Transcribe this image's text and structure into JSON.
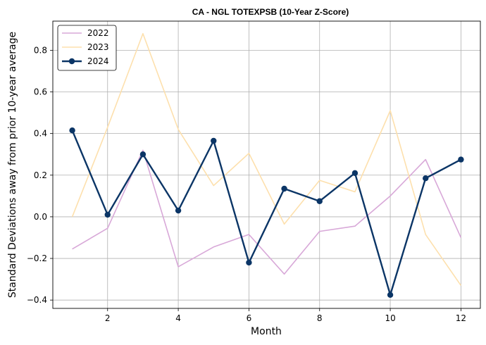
{
  "chart_data": {
    "type": "line",
    "title": "CA - NGL TOTEXPSB (10-Year Z-Score)",
    "xlabel": "Month",
    "ylabel": "Standard Deviations away from prior 10-year average",
    "x": [
      1,
      2,
      3,
      4,
      5,
      6,
      7,
      8,
      9,
      10,
      11,
      12
    ],
    "xlim": [
      0.45,
      12.55
    ],
    "ylim": [
      -0.44,
      0.94
    ],
    "xticks": [
      2,
      4,
      6,
      8,
      10,
      12
    ],
    "yticks": [
      -0.4,
      -0.2,
      0.0,
      0.2,
      0.4,
      0.6,
      0.8
    ],
    "ytick_labels": [
      "−0.4",
      "−0.2",
      "0.0",
      "0.2",
      "0.4",
      "0.6",
      "0.8"
    ],
    "grid": true,
    "legend_position": "top-left",
    "series": [
      {
        "name": "2022",
        "color": "#d8a8d8",
        "markers": false,
        "values": [
          -0.155,
          -0.055,
          0.32,
          -0.24,
          -0.145,
          -0.085,
          -0.275,
          -0.07,
          -0.045,
          0.1,
          0.275,
          -0.1
        ]
      },
      {
        "name": "2023",
        "color": "#fde0ad",
        "markers": false,
        "values": [
          0.0,
          0.43,
          0.88,
          0.42,
          0.15,
          0.305,
          -0.035,
          0.175,
          0.12,
          0.51,
          -0.085,
          -0.33
        ]
      },
      {
        "name": "2024",
        "color": "#0b3566",
        "markers": true,
        "values": [
          0.415,
          0.01,
          0.3,
          0.03,
          0.365,
          -0.22,
          0.135,
          0.075,
          0.21,
          -0.375,
          0.185,
          0.275
        ]
      }
    ]
  }
}
